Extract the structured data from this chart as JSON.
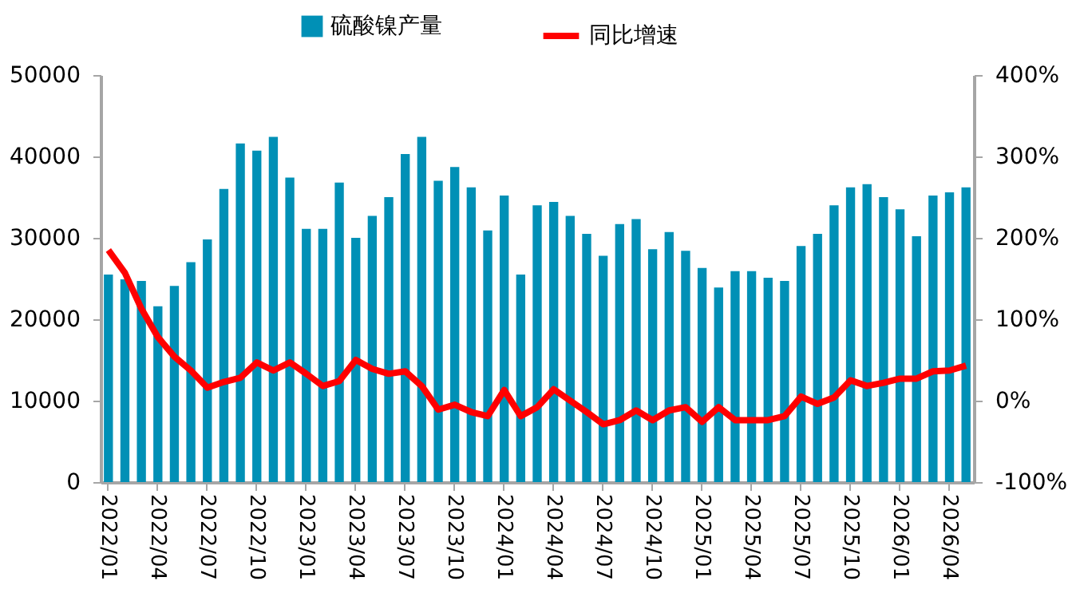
{
  "chart_data": {
    "type": "bar",
    "legend": "top",
    "categories": [
      "2022/01",
      null,
      null,
      "2022/04",
      null,
      null,
      "2022/07",
      null,
      null,
      "2022/10",
      null,
      null,
      "2023/01",
      null,
      null,
      "2023/04",
      null,
      null,
      "2023/07",
      null,
      null,
      "2023/10",
      null,
      null,
      "2024/01",
      null,
      null,
      "2024/04",
      null,
      null,
      "2024/07",
      null,
      null,
      "2024/10",
      null,
      null,
      "2025/01",
      null,
      null,
      "2025/04",
      null,
      null,
      "2025/07",
      null,
      null,
      "2025/10",
      null,
      null,
      "2026/01",
      null,
      null,
      "2026/04",
      null
    ],
    "ylim": [
      0,
      50000
    ],
    "yticks": [
      0,
      10000,
      20000,
      30000,
      40000,
      50000
    ],
    "y2lim": [
      -100,
      400
    ],
    "y2ticks": [
      {
        "value": -100,
        "label": "-100%"
      },
      {
        "value": 0,
        "label": "0%"
      },
      {
        "value": 100,
        "label": "100%"
      },
      {
        "value": 200,
        "label": "200%"
      },
      {
        "value": 300,
        "label": "300%"
      },
      {
        "value": 400,
        "label": "400%"
      }
    ],
    "grid": false,
    "series": [
      {
        "name": "硫酸镍产量",
        "color": "#0090b6",
        "values": [
          25500,
          24900,
          24700,
          21600,
          24100,
          27000,
          29800,
          36000,
          41600,
          40700,
          42400,
          37400,
          31100,
          31100,
          36800,
          30000,
          32700,
          35000,
          40300,
          42400,
          37000,
          38700,
          36200,
          30900,
          35200,
          25500,
          34000,
          34400,
          32700,
          30500,
          27800,
          31700,
          32300,
          28600,
          30700,
          28400,
          26300,
          23900,
          25900,
          25900,
          25100,
          24700,
          29000,
          30500,
          34000,
          36200,
          36600,
          35000,
          33500,
          30200,
          35200,
          35600,
          36200
        ]
      },
      {
        "name": "同比增速",
        "type": "line",
        "axis": "y2",
        "color": "#ff0000",
        "line_style": "solid",
        "marker": "none",
        "values": [
          185,
          157,
          113,
          78,
          54,
          37,
          16,
          23,
          28,
          47,
          37,
          47,
          33,
          18,
          24,
          50,
          39,
          33,
          36,
          18,
          -11,
          -5,
          -14,
          -19,
          13,
          -19,
          -8,
          14,
          0,
          -14,
          -29,
          -24,
          -12,
          -24,
          -12,
          -8,
          -26,
          -8,
          -24,
          -24,
          -24,
          -19,
          5,
          -4,
          4,
          25,
          18,
          22,
          27,
          27,
          36,
          37,
          43
        ]
      }
    ]
  }
}
